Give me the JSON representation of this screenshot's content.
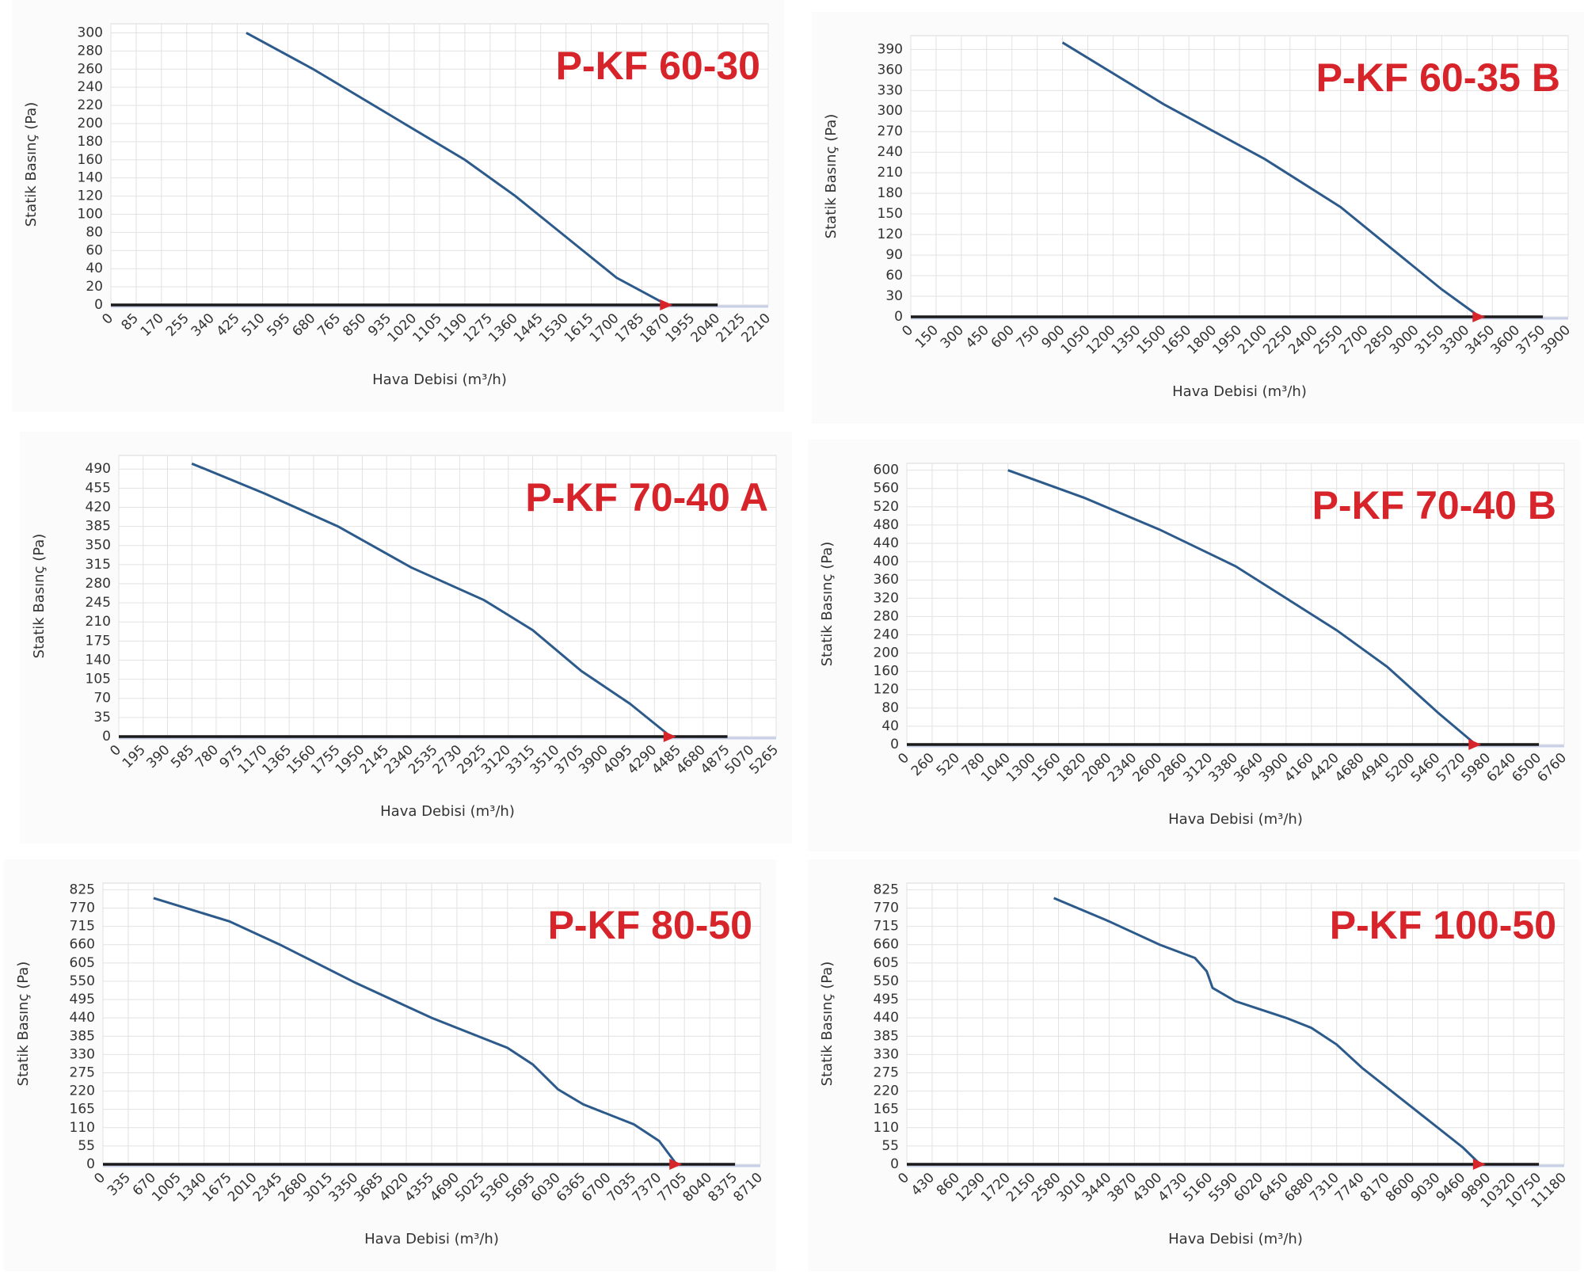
{
  "chart_data": [
    {
      "type": "line",
      "title": "P-KF 60-30",
      "ylabel": "Statik Basınç (Pa)",
      "xlabel": "Hava Debisi (m³/h)",
      "xlim": [
        0,
        2210
      ],
      "ylim": [
        0,
        310
      ],
      "xticks": [
        0,
        85,
        170,
        255,
        340,
        425,
        510,
        595,
        680,
        765,
        850,
        935,
        1020,
        1105,
        1190,
        1275,
        1360,
        1445,
        1530,
        1615,
        1700,
        1785,
        1870,
        1955,
        2040,
        2125,
        2210
      ],
      "yticks": [
        0,
        20,
        40,
        60,
        80,
        100,
        120,
        140,
        160,
        180,
        200,
        220,
        240,
        260,
        280,
        300
      ],
      "grid": true,
      "series": [
        {
          "color": "#2c5a8a",
          "x": [
            455,
            680,
            935,
            1190,
            1360,
            1530,
            1700,
            1870
          ],
          "values": [
            300,
            260,
            210,
            160,
            120,
            75,
            30,
            0
          ]
        },
        {
          "color": "#1a1a1a",
          "x": [
            0,
            2040
          ],
          "values": [
            0,
            0
          ]
        }
      ]
    },
    {
      "type": "line",
      "title": "P-KF 60-35 B",
      "ylabel": "Statik Basınç (Pa)",
      "xlabel": "Hava Debisi (m³/h)",
      "xlim": [
        0,
        3900
      ],
      "ylim": [
        0,
        410
      ],
      "xticks": [
        0,
        150,
        300,
        450,
        600,
        750,
        900,
        1050,
        1200,
        1350,
        1500,
        1650,
        1800,
        1950,
        2100,
        2250,
        2400,
        2550,
        2700,
        2850,
        3000,
        3150,
        3300,
        3450,
        3600,
        3750,
        3900
      ],
      "yticks": [
        0,
        30,
        60,
        90,
        120,
        150,
        180,
        210,
        240,
        270,
        300,
        330,
        360,
        390
      ],
      "grid": true,
      "series": [
        {
          "color": "#2c5a8a",
          "x": [
            900,
            1500,
            2100,
            2550,
            2850,
            3150,
            3375
          ],
          "values": [
            400,
            310,
            230,
            160,
            100,
            40,
            0
          ]
        },
        {
          "color": "#1a1a1a",
          "x": [
            0,
            3750
          ],
          "values": [
            0,
            0
          ]
        }
      ]
    },
    {
      "type": "line",
      "title": "P-KF 70-40 A",
      "ylabel": "Statik Basınç (Pa)",
      "xlabel": "Hava Debisi (m³/h)",
      "xlim": [
        0,
        5265
      ],
      "ylim": [
        0,
        515
      ],
      "xticks": [
        0,
        195,
        390,
        585,
        780,
        975,
        1170,
        1365,
        1560,
        1755,
        1950,
        2145,
        2340,
        2535,
        2730,
        2925,
        3120,
        3315,
        3510,
        3705,
        3900,
        4095,
        4290,
        4485,
        4680,
        4875,
        5070,
        5265
      ],
      "yticks": [
        0,
        35,
        70,
        105,
        140,
        175,
        210,
        245,
        280,
        315,
        350,
        385,
        420,
        455,
        490
      ],
      "grid": true,
      "series": [
        {
          "color": "#2c5a8a",
          "x": [
            585,
            1170,
            1755,
            2340,
            2925,
            3315,
            3705,
            4095,
            4420
          ],
          "values": [
            500,
            445,
            385,
            310,
            250,
            195,
            120,
            60,
            0
          ]
        },
        {
          "color": "#1a1a1a",
          "x": [
            0,
            4875
          ],
          "values": [
            0,
            0
          ]
        }
      ]
    },
    {
      "type": "line",
      "title": "P-KF 70-40 B",
      "ylabel": "Statik Basınç (Pa)",
      "xlabel": "Hava Debisi (m³/h)",
      "xlim": [
        0,
        6760
      ],
      "ylim": [
        0,
        615
      ],
      "xticks": [
        0,
        260,
        520,
        780,
        1040,
        1300,
        1560,
        1820,
        2080,
        2340,
        2600,
        2860,
        3120,
        3380,
        3640,
        3900,
        4160,
        4420,
        4680,
        4940,
        5200,
        5460,
        5720,
        5980,
        6240,
        6500,
        6760
      ],
      "yticks": [
        0,
        40,
        80,
        120,
        160,
        200,
        240,
        280,
        320,
        360,
        400,
        440,
        480,
        520,
        560,
        600
      ],
      "grid": true,
      "series": [
        {
          "color": "#2c5a8a",
          "x": [
            1040,
            1820,
            2600,
            3380,
            3900,
            4420,
            4940,
            5460,
            5850
          ],
          "values": [
            600,
            540,
            470,
            390,
            320,
            250,
            170,
            70,
            0
          ]
        },
        {
          "color": "#1a1a1a",
          "x": [
            0,
            6500
          ],
          "values": [
            0,
            0
          ]
        }
      ]
    },
    {
      "type": "line",
      "title": "P-KF 80-50",
      "ylabel": "Statik Basınç (Pa)",
      "xlabel": "Hava Debisi (m³/h)",
      "xlim": [
        0,
        8710
      ],
      "ylim": [
        0,
        845
      ],
      "xticks": [
        0,
        335,
        670,
        1005,
        1340,
        1675,
        2010,
        2345,
        2680,
        3015,
        3350,
        3685,
        4020,
        4355,
        4690,
        5025,
        5360,
        5695,
        6030,
        6365,
        6700,
        7035,
        7370,
        7705,
        8040,
        8375,
        8710
      ],
      "yticks": [
        0,
        55,
        110,
        165,
        220,
        275,
        330,
        385,
        440,
        495,
        550,
        605,
        660,
        715,
        770,
        825
      ],
      "grid": true,
      "series": [
        {
          "color": "#2c5a8a",
          "x": [
            670,
            1675,
            2345,
            3350,
            4355,
            5360,
            5695,
            6030,
            6365,
            7035,
            7370,
            7600
          ],
          "values": [
            800,
            730,
            660,
            545,
            440,
            350,
            300,
            225,
            180,
            120,
            70,
            0
          ]
        },
        {
          "color": "#1a1a1a",
          "x": [
            0,
            8375
          ],
          "values": [
            0,
            0
          ]
        }
      ]
    },
    {
      "type": "line",
      "title": "P-KF 100-50",
      "ylabel": "Statik Basınç (Pa)",
      "xlabel": "Hava Debisi (m³/h)",
      "xlim": [
        0,
        11180
      ],
      "ylim": [
        0,
        845
      ],
      "xticks": [
        0,
        430,
        860,
        1290,
        1720,
        2150,
        2580,
        3010,
        3440,
        3870,
        4300,
        4730,
        5160,
        5590,
        6020,
        6450,
        6880,
        7310,
        7740,
        8170,
        8600,
        9030,
        9460,
        9890,
        10320,
        10750,
        11180
      ],
      "yticks": [
        0,
        55,
        110,
        165,
        220,
        275,
        330,
        385,
        440,
        495,
        550,
        605,
        660,
        715,
        770,
        825
      ],
      "grid": true,
      "series": [
        {
          "color": "#2c5a8a",
          "x": [
            2500,
            3440,
            4300,
            4900,
            5100,
            5200,
            5590,
            6450,
            6880,
            7310,
            7740,
            8600,
            9460,
            9750
          ],
          "values": [
            800,
            730,
            660,
            620,
            580,
            530,
            490,
            440,
            410,
            360,
            290,
            170,
            50,
            0
          ]
        },
        {
          "color": "#1a1a1a",
          "x": [
            0,
            10750
          ],
          "values": [
            0,
            0
          ]
        }
      ]
    }
  ]
}
